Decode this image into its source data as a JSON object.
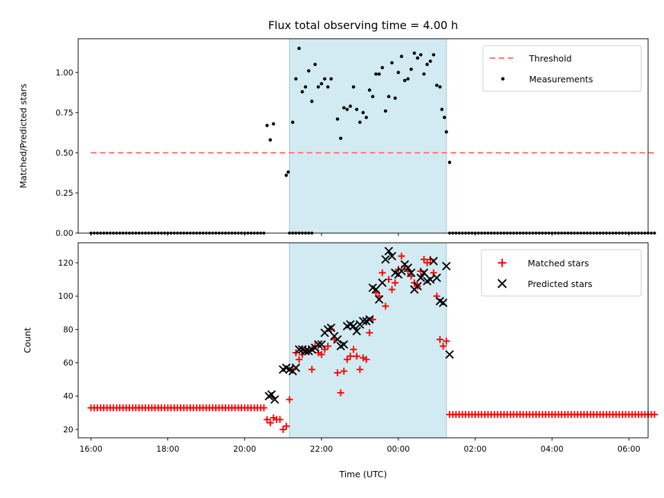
{
  "chart_data": [
    {
      "type": "scatter",
      "title": "Flux total observing time = 4.00 h",
      "xlabel": "",
      "ylabel": "Matched/Predicted stars",
      "x_unit": "time (UTC)",
      "xlim": [
        "16:00",
        "07:00"
      ],
      "ylim": [
        0,
        1.2
      ],
      "yticks": [
        "0.00",
        "0.25",
        "0.50",
        "0.75",
        "1.00"
      ],
      "shaded_region": {
        "from": "21:10",
        "to": "01:15",
        "color": "#add8e6"
      },
      "legend": {
        "placement": "top-right",
        "entries": [
          "Threshold",
          "Measurements"
        ]
      },
      "threshold": {
        "name": "Threshold",
        "value": 0.5,
        "x": [
          "16:00",
          "06:40"
        ],
        "color": "#ff6666",
        "style": "dashed"
      },
      "series": [
        {
          "name": "Measurements",
          "color": "#000000",
          "zero_points": [
            {
              "from": "16:00",
              "to": "20:30",
              "step_min": 5
            },
            {
              "from": "21:10",
              "to": "21:45",
              "step_min": 5
            },
            {
              "from": "01:20",
              "to": "06:40",
              "step_min": 5
            }
          ],
          "points": [
            [
              "20:35",
              0.67
            ],
            [
              "20:40",
              0.58
            ],
            [
              "20:45",
              0.68
            ],
            [
              "21:05",
              0.36
            ],
            [
              "21:08",
              0.38
            ],
            [
              "21:15",
              0.69
            ],
            [
              "21:20",
              0.96
            ],
            [
              "21:25",
              1.15
            ],
            [
              "21:30",
              0.88
            ],
            [
              "21:35",
              0.91
            ],
            [
              "21:40",
              1.01
            ],
            [
              "21:45",
              0.82
            ],
            [
              "21:50",
              1.05
            ],
            [
              "21:55",
              0.91
            ],
            [
              "22:00",
              0.93
            ],
            [
              "22:05",
              0.96
            ],
            [
              "22:10",
              0.91
            ],
            [
              "22:15",
              0.96
            ],
            [
              "22:25",
              0.71
            ],
            [
              "22:30",
              0.59
            ],
            [
              "22:35",
              0.78
            ],
            [
              "22:40",
              0.77
            ],
            [
              "22:45",
              0.79
            ],
            [
              "22:50",
              0.91
            ],
            [
              "22:55",
              0.77
            ],
            [
              "23:00",
              0.69
            ],
            [
              "23:05",
              0.75
            ],
            [
              "23:10",
              0.72
            ],
            [
              "23:15",
              0.89
            ],
            [
              "23:20",
              0.85
            ],
            [
              "23:25",
              0.99
            ],
            [
              "23:30",
              0.99
            ],
            [
              "23:35",
              1.03
            ],
            [
              "23:40",
              0.76
            ],
            [
              "23:45",
              0.85
            ],
            [
              "23:50",
              1.06
            ],
            [
              "23:55",
              0.84
            ],
            [
              "00:00",
              1.0
            ],
            [
              "00:05",
              1.1
            ],
            [
              "00:10",
              0.95
            ],
            [
              "00:15",
              0.96
            ],
            [
              "00:20",
              1.02
            ],
            [
              "00:25",
              1.12
            ],
            [
              "00:30",
              1.09
            ],
            [
              "00:35",
              1.11
            ],
            [
              "00:40",
              0.99
            ],
            [
              "00:45",
              1.05
            ],
            [
              "00:50",
              1.07
            ],
            [
              "00:55",
              1.11
            ],
            [
              "01:00",
              0.92
            ],
            [
              "01:05",
              0.91
            ],
            [
              "01:08",
              0.77
            ],
            [
              "01:12",
              0.72
            ],
            [
              "01:15",
              0.63
            ],
            [
              "01:20",
              0.44
            ]
          ]
        }
      ]
    },
    {
      "type": "scatter",
      "title": "",
      "xlabel": "Time (UTC)",
      "ylabel": "Count",
      "xlim": [
        "16:00",
        "07:00"
      ],
      "ylim": [
        15,
        132
      ],
      "xticks": [
        "16:00",
        "18:00",
        "20:00",
        "22:00",
        "00:00",
        "02:00",
        "04:00",
        "06:00"
      ],
      "yticks": [
        "20",
        "40",
        "60",
        "80",
        "100",
        "120"
      ],
      "shaded_region": {
        "from": "21:10",
        "to": "01:15",
        "color": "#add8e6"
      },
      "legend": {
        "placement": "top-right",
        "entries": [
          "Matched stars",
          "Predicted stars"
        ]
      },
      "series": [
        {
          "name": "Matched stars",
          "marker": "+",
          "color": "#ff0000",
          "constant_runs": [
            {
              "from": "16:00",
              "to": "20:30",
              "step_min": 5,
              "value": 33
            },
            {
              "from": "01:20",
              "to": "06:40",
              "step_min": 5,
              "value": 29
            }
          ],
          "points": [
            [
              "20:35",
              26
            ],
            [
              "20:40",
              24
            ],
            [
              "20:45",
              27
            ],
            [
              "20:50",
              26
            ],
            [
              "20:55",
              26
            ],
            [
              "21:00",
              20
            ],
            [
              "21:05",
              22
            ],
            [
              "21:10",
              38
            ],
            [
              "21:15",
              56
            ],
            [
              "21:20",
              66
            ],
            [
              "21:25",
              62
            ],
            [
              "21:30",
              65
            ],
            [
              "21:35",
              68
            ],
            [
              "21:40",
              67
            ],
            [
              "21:45",
              56
            ],
            [
              "21:50",
              70
            ],
            [
              "21:55",
              66
            ],
            [
              "22:00",
              65
            ],
            [
              "22:05",
              68
            ],
            [
              "22:10",
              70
            ],
            [
              "22:15",
              80
            ],
            [
              "22:20",
              74
            ],
            [
              "22:25",
              54
            ],
            [
              "22:30",
              42
            ],
            [
              "22:35",
              55
            ],
            [
              "22:40",
              62
            ],
            [
              "22:45",
              64
            ],
            [
              "22:50",
              68
            ],
            [
              "22:55",
              64
            ],
            [
              "23:00",
              56
            ],
            [
              "23:05",
              63
            ],
            [
              "23:10",
              62
            ],
            [
              "23:15",
              78
            ],
            [
              "23:20",
              86
            ],
            [
              "23:25",
              102
            ],
            [
              "23:30",
              100
            ],
            [
              "23:35",
              114
            ],
            [
              "23:40",
              94
            ],
            [
              "23:45",
              110
            ],
            [
              "23:50",
              104
            ],
            [
              "23:55",
              108
            ],
            [
              "00:00",
              116
            ],
            [
              "00:05",
              124
            ],
            [
              "00:10",
              118
            ],
            [
              "00:15",
              115
            ],
            [
              "00:20",
              112
            ],
            [
              "00:25",
              108
            ],
            [
              "00:30",
              106
            ],
            [
              "00:35",
              115
            ],
            [
              "00:40",
              122
            ],
            [
              "00:45",
              120
            ],
            [
              "00:50",
              122
            ],
            [
              "00:55",
              114
            ],
            [
              "01:00",
              100
            ],
            [
              "01:05",
              74
            ],
            [
              "01:10",
              70
            ],
            [
              "01:15",
              73
            ]
          ]
        },
        {
          "name": "Predicted stars",
          "marker": "x",
          "color": "#000000",
          "points": [
            [
              "20:38",
              40
            ],
            [
              "20:42",
              41
            ],
            [
              "20:47",
              38
            ],
            [
              "21:00",
              56
            ],
            [
              "21:05",
              57
            ],
            [
              "21:10",
              56
            ],
            [
              "21:15",
              55
            ],
            [
              "21:20",
              57
            ],
            [
              "21:25",
              68
            ],
            [
              "21:30",
              68
            ],
            [
              "21:35",
              67
            ],
            [
              "21:40",
              67
            ],
            [
              "21:45",
              68
            ],
            [
              "21:50",
              69
            ],
            [
              "21:55",
              71
            ],
            [
              "22:00",
              71
            ],
            [
              "22:05",
              78
            ],
            [
              "22:10",
              80
            ],
            [
              "22:15",
              81
            ],
            [
              "22:20",
              76
            ],
            [
              "22:25",
              74
            ],
            [
              "22:30",
              70
            ],
            [
              "22:35",
              71
            ],
            [
              "22:40",
              82
            ],
            [
              "22:45",
              83
            ],
            [
              "22:50",
              82
            ],
            [
              "22:55",
              79
            ],
            [
              "23:00",
              83
            ],
            [
              "23:05",
              85
            ],
            [
              "23:10",
              85
            ],
            [
              "23:15",
              86
            ],
            [
              "23:20",
              105
            ],
            [
              "23:25",
              104
            ],
            [
              "23:30",
              98
            ],
            [
              "23:35",
              108
            ],
            [
              "23:40",
              122
            ],
            [
              "23:45",
              127
            ],
            [
              "23:50",
              124
            ],
            [
              "23:55",
              114
            ],
            [
              "00:00",
              113
            ],
            [
              "00:05",
              115
            ],
            [
              "00:10",
              119
            ],
            [
              "00:15",
              117
            ],
            [
              "00:20",
              114
            ],
            [
              "00:25",
              104
            ],
            [
              "00:30",
              106
            ],
            [
              "00:35",
              111
            ],
            [
              "00:40",
              114
            ],
            [
              "00:45",
              109
            ],
            [
              "00:50",
              110
            ],
            [
              "00:55",
              121
            ],
            [
              "01:00",
              111
            ],
            [
              "01:05",
              97
            ],
            [
              "01:10",
              96
            ],
            [
              "01:15",
              118
            ],
            [
              "01:20",
              65
            ]
          ]
        }
      ]
    }
  ]
}
